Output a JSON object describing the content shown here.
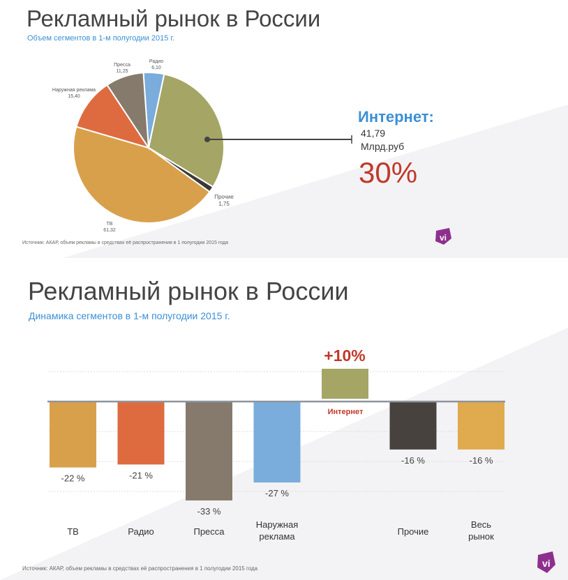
{
  "slide1": {
    "title": "Рекламный рынок в России",
    "subtitle": "Объем сегментов в 1-м полугодии 2015 г.",
    "source": "Источник: АКАР, объем рекламы в средствах её распространения в 1 полугодии 2015 года",
    "callout": {
      "label": "Интернет:",
      "value": "41,79",
      "unit": "Млрд.руб",
      "percent": "30%"
    },
    "logo_text": "vi"
  },
  "slide2": {
    "title": "Рекламный рынок в России",
    "subtitle": "Динамика сегментов в 1-м полугодии 2015 г.",
    "source": "Источник: АКАР, объем рекламы в средствах её распространения в 1 полугодии 2015 года",
    "highlight_value": "+10%",
    "highlight_label": "Интернет",
    "logo_text": "vi"
  },
  "chart_data": [
    {
      "type": "pie",
      "title": "Объем сегментов в 1-м полугодии 2015 г.",
      "unit": "Млрд.руб",
      "slices": [
        {
          "name": "Радио",
          "value": 6.1,
          "label": "6,10",
          "color": "#7aacdc"
        },
        {
          "name": "Интернет",
          "value": 41.79,
          "label": "41,79",
          "color": "#a5a565"
        },
        {
          "name": "Прочие",
          "value": 1.75,
          "label": "1,75",
          "color": "#3b3835"
        },
        {
          "name": "ТВ",
          "value": 61.32,
          "label": "61,32",
          "color": "#d9a04b"
        },
        {
          "name": "Наружная реклама",
          "value": 15.4,
          "label": "15,40",
          "color": "#de6b40"
        },
        {
          "name": "Пресса",
          "value": 11.25,
          "label": "11,25",
          "color": "#857a6c"
        }
      ]
    },
    {
      "type": "bar",
      "title": "Динамика сегментов в 1-м полугодии 2015 г.",
      "categories": [
        "ТВ",
        "Радио",
        "Пресса",
        "Наружная реклама",
        "Интернет",
        "Прочие",
        "Весь рынок"
      ],
      "category_lines": [
        [
          "ТВ"
        ],
        [
          "Радио"
        ],
        [
          "Пресса"
        ],
        [
          "Наружная",
          "реклама"
        ],
        [],
        [
          "Прочие"
        ],
        [
          "Весь",
          "рынок"
        ]
      ],
      "values": [
        -22,
        -21,
        -33,
        -27,
        10,
        -16,
        -16
      ],
      "labels": [
        "-22 %",
        "-21 %",
        "-33 %",
        "-27 %",
        "+10%",
        "-16 %",
        "-16 %"
      ],
      "colors": [
        "#d9a04b",
        "#de6b40",
        "#857a6c",
        "#7aacdc",
        "#a5a565",
        "#47423d",
        "#e0aa4e"
      ],
      "ylim": [
        -35,
        12
      ],
      "grid": true,
      "ylabel": "",
      "xlabel": ""
    }
  ]
}
